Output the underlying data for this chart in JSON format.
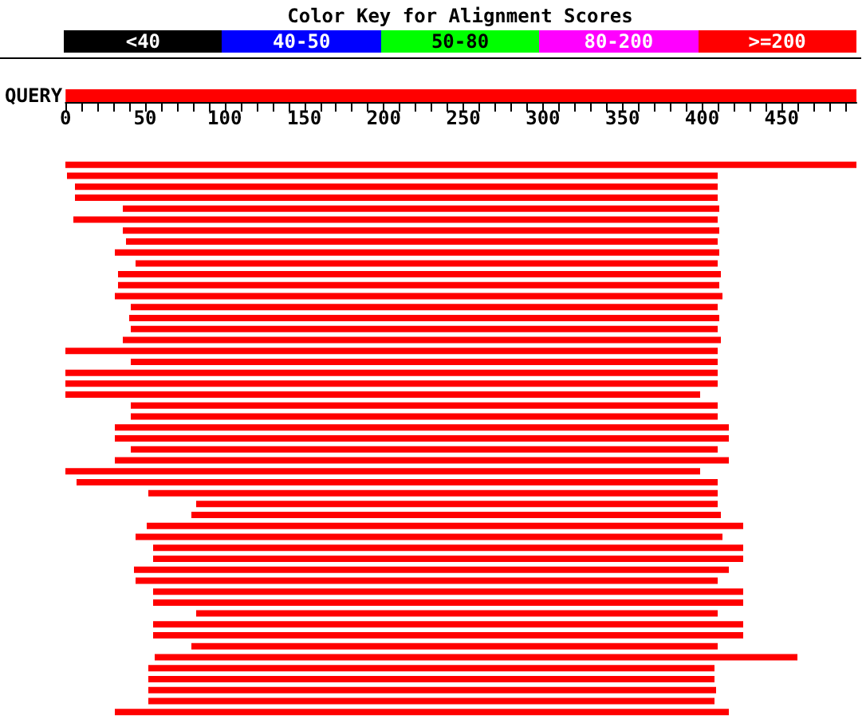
{
  "chart_data": [
    {
      "type": "bar",
      "orientation": "horizontal",
      "tick_labels": "xy",
      "annotations": [
        "Color Key for Alignment Scores",
        "<40",
        "40-50",
        "50-80",
        "80-200",
        ">=200"
      ],
      "categories": [
        "QUERY"
      ],
      "color": "#ff0000",
      "values": [
        497
      ],
      "xlim": [
        0,
        497
      ],
      "xticks": [
        0,
        {
          "value": 10,
          "label": null
        },
        {
          "value": 20,
          "label": null
        },
        {
          "value": 30,
          "label": null
        },
        {
          "value": 40,
          "label": null
        },
        50,
        {
          "value": 60,
          "label": null
        },
        {
          "value": 70,
          "label": null
        },
        {
          "value": 80,
          "label": null
        },
        {
          "value": 90,
          "label": null
        },
        100,
        {
          "value": 110,
          "label": null
        },
        {
          "value": 120,
          "label": null
        },
        {
          "value": 130,
          "label": null
        },
        {
          "value": 140,
          "label": null
        },
        150,
        {
          "value": 160,
          "label": null
        },
        {
          "value": 170,
          "label": null
        },
        {
          "value": 180,
          "label": null
        },
        {
          "value": 190,
          "label": null
        },
        200,
        {
          "value": 210,
          "label": null
        },
        {
          "value": 220,
          "label": null
        },
        {
          "value": 230,
          "label": null
        },
        {
          "value": 240,
          "label": null
        },
        250,
        {
          "value": 260,
          "label": null
        },
        {
          "value": 270,
          "label": null
        },
        {
          "value": 280,
          "label": null
        },
        {
          "value": 290,
          "label": null
        },
        300,
        {
          "value": 310,
          "label": null
        },
        {
          "value": 320,
          "label": null
        },
        {
          "value": 330,
          "label": null
        },
        {
          "value": 340,
          "label": null
        },
        350,
        {
          "value": 360,
          "label": null
        },
        {
          "value": 370,
          "label": null
        },
        {
          "value": 380,
          "label": null
        },
        {
          "value": 390,
          "label": null
        },
        400,
        {
          "value": 410,
          "label": null
        },
        {
          "value": 420,
          "label": null
        },
        {
          "value": 430,
          "label": null
        },
        {
          "value": 440,
          "label": null
        },
        450,
        {
          "value": 460,
          "label": null
        },
        {
          "value": 470,
          "label": null
        },
        {
          "value": 480,
          "label": null
        },
        {
          "value": 490,
          "label": null
        }
      ]
    },
    {
      "type": "bar",
      "orientation": "horizontal",
      "tick_labels": false,
      "color": "#ff0000",
      "xlim": [
        0,
        497
      ],
      "categories": [
        null,
        null,
        null,
        null,
        null,
        null,
        null,
        null,
        null,
        null,
        null,
        null,
        null,
        null,
        null,
        null,
        null,
        null,
        null,
        null,
        null,
        null,
        null,
        null,
        null,
        null,
        null,
        null,
        null,
        null,
        null,
        null,
        null,
        null,
        null,
        null,
        null,
        null,
        null,
        null,
        null,
        null,
        null,
        null,
        null,
        null,
        null,
        null,
        null,
        null,
        null
      ],
      "base": [
        1,
        2,
        7,
        7,
        37,
        6,
        37,
        39,
        32,
        45,
        34,
        34,
        32,
        42,
        41,
        42,
        37,
        1,
        42,
        1,
        1,
        1,
        42,
        42,
        32,
        32,
        42,
        32,
        1,
        8,
        53,
        83,
        80,
        52,
        45,
        56,
        56,
        44,
        45,
        56,
        56,
        83,
        56,
        56,
        80,
        57,
        53,
        53,
        53,
        53,
        32
      ],
      "values": [
        496,
        408,
        403,
        403,
        374,
        404,
        374,
        371,
        379,
        365,
        378,
        377,
        381,
        368,
        370,
        368,
        375,
        409,
        368,
        409,
        409,
        398,
        368,
        368,
        385,
        385,
        368,
        385,
        398,
        402,
        357,
        327,
        332,
        374,
        368,
        370,
        370,
        373,
        365,
        370,
        370,
        327,
        370,
        370,
        330,
        403,
        355,
        355,
        356,
        355,
        385
      ]
    }
  ]
}
